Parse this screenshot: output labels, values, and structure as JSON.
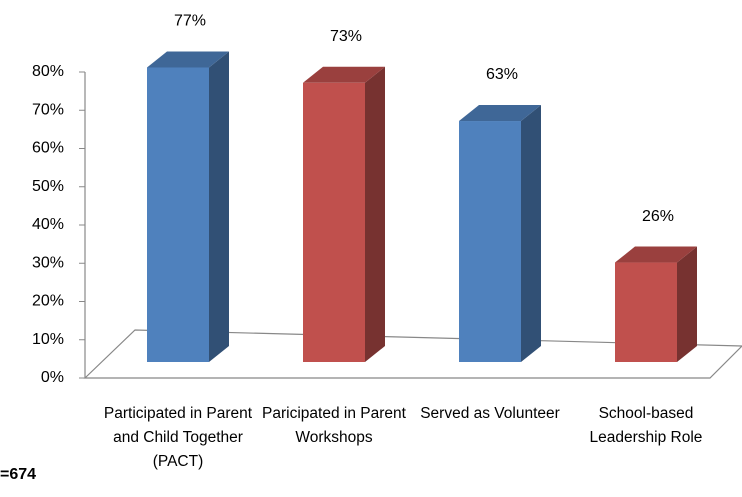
{
  "chart_data": {
    "type": "bar3d",
    "categories": [
      "Participated in Parent and Child Together (PACT)",
      "Paricipated in Parent Workshops",
      "Served as Volunteer",
      "School-based Leadership Role"
    ],
    "values": [
      77,
      73,
      63,
      26
    ],
    "value_labels": [
      "77%",
      "73%",
      "63%",
      "26%"
    ],
    "colors": [
      "#4f81bd",
      "#c0504d",
      "#4f81bd",
      "#c0504d"
    ],
    "ylim": [
      0,
      80
    ],
    "yticks": [
      {
        "value": 0,
        "label": "0%"
      },
      {
        "value": 10,
        "label": "10%"
      },
      {
        "value": 20,
        "label": "20%"
      },
      {
        "value": 30,
        "label": "30%"
      },
      {
        "value": 40,
        "label": "40%"
      },
      {
        "value": 50,
        "label": "50%"
      },
      {
        "value": 60,
        "label": "60%"
      },
      {
        "value": 70,
        "label": "70%"
      },
      {
        "value": 80,
        "label": "80%"
      }
    ],
    "annotation": "=674"
  }
}
